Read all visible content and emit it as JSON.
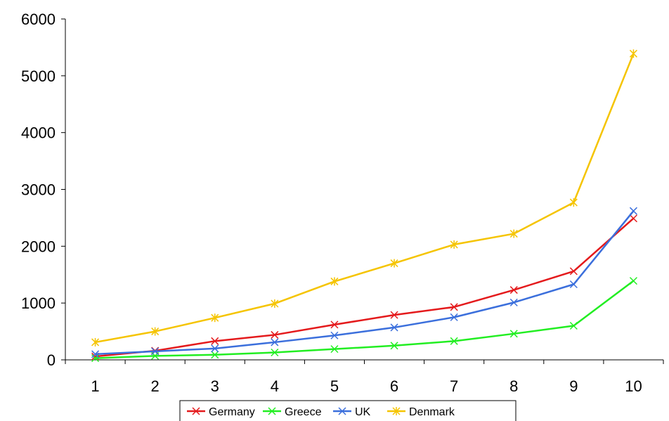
{
  "chart_data": {
    "type": "line",
    "title": "",
    "xlabel": "",
    "ylabel": "",
    "categories": [
      "1",
      "2",
      "3",
      "4",
      "5",
      "6",
      "7",
      "8",
      "9",
      "10"
    ],
    "ylim": [
      0,
      6000
    ],
    "y_ticks": [
      "0",
      "1000",
      "2000",
      "3000",
      "4000",
      "5000",
      "6000"
    ],
    "grid": false,
    "legend_position": "bottom",
    "series": [
      {
        "name": "Germany",
        "color": "#e41a1c",
        "values": [
          60,
          160,
          330,
          440,
          620,
          790,
          930,
          1230,
          1560,
          2490
        ]
      },
      {
        "name": "Greece",
        "color": "#22ee22",
        "values": [
          30,
          70,
          90,
          130,
          190,
          250,
          330,
          460,
          600,
          1390
        ]
      },
      {
        "name": "UK",
        "color": "#3b6fdc",
        "values": [
          100,
          150,
          200,
          310,
          430,
          570,
          750,
          1010,
          1330,
          2620
        ]
      },
      {
        "name": "Denmark",
        "color": "#f5c400",
        "values": [
          310,
          500,
          740,
          990,
          1380,
          1700,
          2030,
          2220,
          2770,
          5390
        ]
      }
    ]
  }
}
